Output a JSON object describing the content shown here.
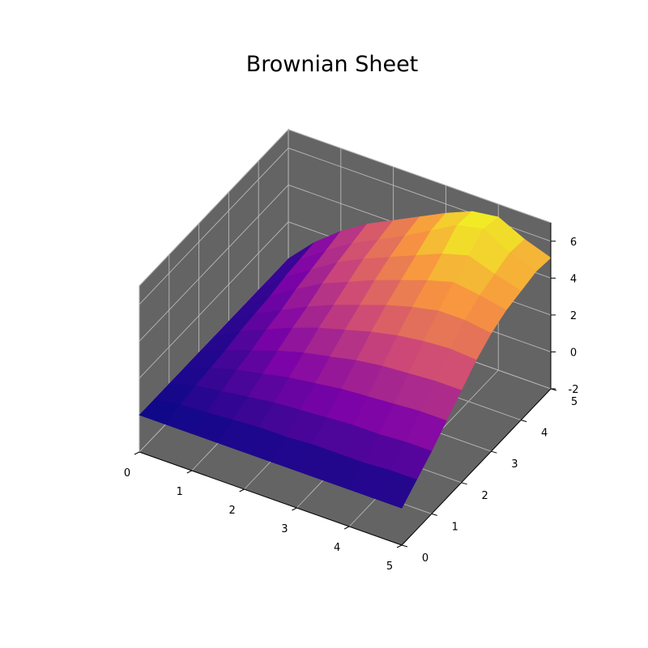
{
  "chart_data": {
    "type": "surface",
    "title": "Brownian Sheet",
    "xlabel": "",
    "ylabel": "",
    "zlabel": "",
    "xlim": [
      0,
      5
    ],
    "ylim": [
      0,
      5
    ],
    "zlim": [
      -2,
      7
    ],
    "x_ticks": [
      "0",
      "1",
      "2",
      "3",
      "4",
      "5"
    ],
    "y_ticks": [
      "0",
      "1",
      "2",
      "3",
      "4",
      "5"
    ],
    "z_ticks": [
      "-2",
      "0",
      "2",
      "4",
      "6"
    ],
    "grid": true,
    "colormap": "plasma",
    "pane_color": "#646464",
    "x": [
      0,
      0.5,
      1,
      1.5,
      2,
      2.5,
      3,
      3.5,
      4,
      4.5,
      5
    ],
    "y": [
      0,
      0.5,
      1,
      1.5,
      2,
      2.5,
      3,
      3.5,
      4,
      4.5,
      5
    ],
    "z": [
      [
        0,
        0,
        0,
        0,
        0,
        0,
        0,
        0,
        0,
        0,
        0
      ],
      [
        0,
        0.2,
        0.4,
        0.5,
        0.6,
        0.8,
        0.9,
        1.0,
        1.2,
        1.3,
        1.4
      ],
      [
        0,
        0.3,
        0.6,
        0.9,
        1.1,
        1.4,
        1.6,
        1.9,
        2.1,
        2.3,
        2.5
      ],
      [
        0,
        0.4,
        0.8,
        1.2,
        1.6,
        2.0,
        2.3,
        2.7,
        3.0,
        3.2,
        3.4
      ],
      [
        0,
        0.5,
        1.0,
        1.5,
        2.0,
        2.5,
        2.9,
        3.3,
        3.7,
        3.9,
        4.1
      ],
      [
        0,
        0.5,
        1.1,
        1.7,
        2.3,
        2.9,
        3.4,
        3.9,
        4.3,
        4.6,
        4.8
      ],
      [
        0,
        0.6,
        1.2,
        1.9,
        2.6,
        3.3,
        3.9,
        4.4,
        4.9,
        5.4,
        5.5
      ],
      [
        0,
        0.6,
        1.3,
        2.0,
        2.8,
        3.6,
        4.3,
        4.9,
        5.5,
        6.2,
        6.1
      ],
      [
        0,
        0.6,
        1.3,
        2.1,
        2.9,
        3.8,
        4.6,
        5.3,
        5.9,
        6.5,
        6.3
      ],
      [
        0,
        0.7,
        1.4,
        2.2,
        3.0,
        3.9,
        4.6,
        5.1,
        5.4,
        5.7,
        5.6
      ],
      [
        0,
        0.7,
        1.4,
        2.2,
        3.0,
        3.8,
        4.4,
        4.8,
        5.0,
        5.2,
        5.1
      ]
    ]
  }
}
